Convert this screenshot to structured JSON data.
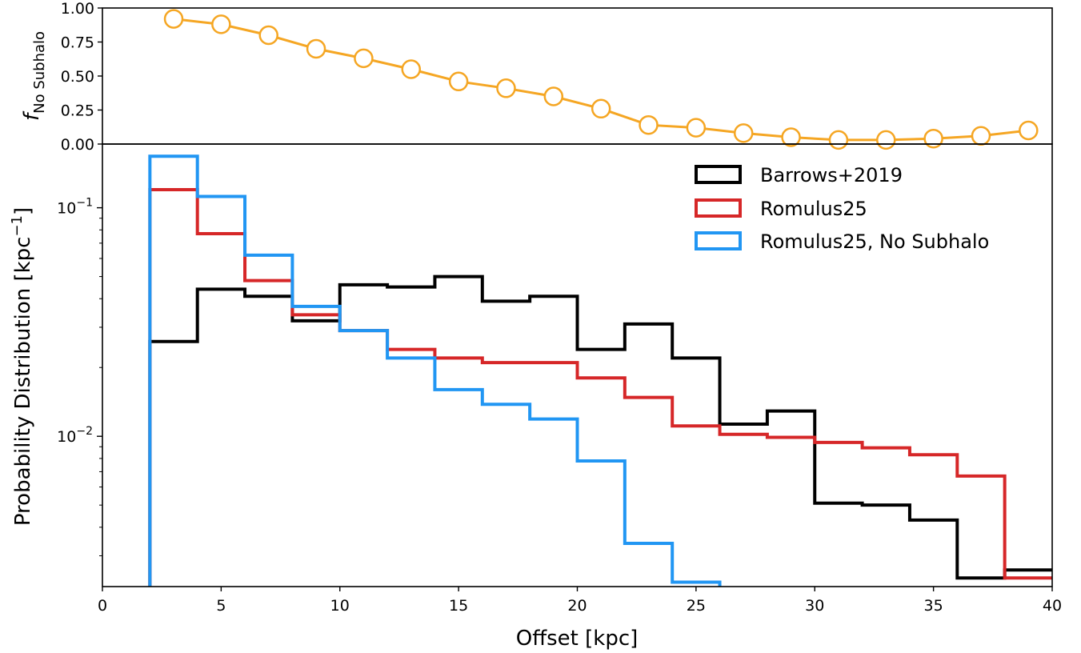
{
  "chart_data": [
    {
      "panel": "top",
      "type": "line",
      "ylabel_main": "f",
      "ylabel_sub": "No Subhalo",
      "xlim": [
        0,
        40
      ],
      "ylim": [
        0,
        1
      ],
      "yticks": [
        "0.00",
        "0.25",
        "0.50",
        "0.75",
        "1.00"
      ],
      "ytick_values": [
        0,
        0.25,
        0.5,
        0.75,
        1.0
      ],
      "color": "#f5a623",
      "series": [
        {
          "x": [
            3,
            5,
            7,
            9,
            11,
            13,
            15,
            17,
            19,
            21,
            23,
            25,
            27,
            29,
            31,
            33,
            35,
            37,
            39
          ],
          "values": [
            0.92,
            0.88,
            0.8,
            0.7,
            0.63,
            0.55,
            0.46,
            0.41,
            0.35,
            0.26,
            0.14,
            0.12,
            0.08,
            0.05,
            0.03,
            0.03,
            0.04,
            0.06,
            0.1
          ]
        }
      ]
    },
    {
      "panel": "bottom",
      "type": "line",
      "style": "step-histogram",
      "xlabel": "Offset [kpc]",
      "ylabel": "Probability Distribution [kpc",
      "ylabel_sup": "−1",
      "ylabel_close": "]",
      "yscale": "log",
      "xlim": [
        0,
        40
      ],
      "ylim": [
        0.0022,
        0.19
      ],
      "xticks": [
        "0",
        "5",
        "10",
        "15",
        "20",
        "25",
        "30",
        "35",
        "40"
      ],
      "xtick_values": [
        0,
        5,
        10,
        15,
        20,
        25,
        30,
        35,
        40
      ],
      "yticks_base": [
        "10",
        "10"
      ],
      "yticks_exp": [
        "−1",
        "−2"
      ],
      "ytick_values": [
        0.1,
        0.01
      ],
      "bin_edges": [
        2,
        4,
        6,
        8,
        10,
        12,
        14,
        16,
        18,
        20,
        22,
        24,
        26,
        28,
        30,
        32,
        34,
        36,
        38,
        40
      ],
      "legend_position": "upper right",
      "series": [
        {
          "name": "Barrows+2019",
          "color": "#000000",
          "values": [
            0.026,
            0.044,
            0.041,
            0.032,
            0.046,
            0.045,
            0.05,
            0.039,
            0.041,
            0.024,
            0.031,
            0.022,
            0.0113,
            0.0129,
            0.0051,
            0.005,
            0.0043,
            0.0024,
            0.0026
          ]
        },
        {
          "name": "Romulus25",
          "color": "#d62728",
          "values": [
            0.12,
            0.077,
            0.048,
            0.034,
            0.029,
            0.024,
            0.022,
            0.021,
            0.021,
            0.018,
            0.0148,
            0.0111,
            0.0102,
            0.0099,
            0.0094,
            0.0089,
            0.0083,
            0.0067,
            0.0024
          ]
        },
        {
          "name": "Romulus25, No Subhalo",
          "color": "#2196f3",
          "values": [
            0.168,
            0.112,
            0.062,
            0.037,
            0.029,
            0.022,
            0.016,
            0.0138,
            0.0119,
            0.0078,
            0.0034,
            0.0023
          ]
        }
      ]
    }
  ]
}
